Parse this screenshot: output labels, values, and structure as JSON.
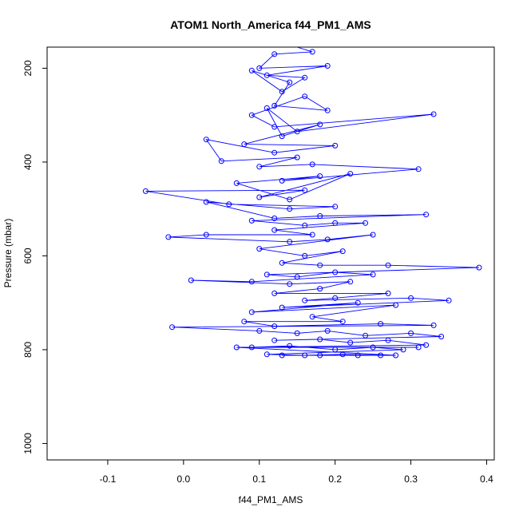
{
  "chart_data": {
    "type": "line",
    "title": "ATOM1 North_America f44_PM1_AMS",
    "xlabel": "f44_PM1_AMS",
    "ylabel": "Pressure (mbar)",
    "xlim": [
      -0.18,
      0.41
    ],
    "ylim": [
      1035,
      155
    ],
    "y_reversed": true,
    "xticks": [
      -0.1,
      0.0,
      0.1,
      0.2,
      0.3,
      0.4
    ],
    "yticks": [
      200,
      400,
      600,
      800,
      1000
    ],
    "series_color": "#0000ff",
    "marker": "open-circle",
    "grid": false,
    "series": [
      {
        "points": [
          [
            0.14,
            150
          ],
          [
            0.17,
            165
          ],
          [
            0.12,
            170
          ],
          [
            0.1,
            200
          ],
          [
            0.19,
            195
          ],
          [
            0.11,
            215
          ],
          [
            0.16,
            220
          ],
          [
            0.13,
            250
          ],
          [
            0.09,
            205
          ],
          [
            0.14,
            230
          ],
          [
            0.12,
            280
          ],
          [
            0.19,
            290
          ],
          [
            0.16,
            260
          ],
          [
            0.09,
            300
          ],
          [
            0.12,
            325
          ],
          [
            0.33,
            298
          ],
          [
            0.15,
            335
          ],
          [
            0.11,
            285
          ],
          [
            0.13,
            345
          ],
          [
            0.18,
            320
          ],
          [
            0.08,
            362
          ],
          [
            0.2,
            365
          ],
          [
            0.12,
            380
          ],
          [
            0.03,
            352
          ],
          [
            0.05,
            398
          ],
          [
            0.15,
            390
          ],
          [
            0.1,
            410
          ],
          [
            0.17,
            405
          ],
          [
            0.31,
            415
          ],
          [
            0.13,
            440
          ],
          [
            0.18,
            430
          ],
          [
            0.07,
            445
          ],
          [
            0.14,
            480
          ],
          [
            0.22,
            425
          ],
          [
            0.1,
            475
          ],
          [
            0.16,
            460
          ],
          [
            -0.05,
            462
          ],
          [
            0.06,
            490
          ],
          [
            0.2,
            495
          ],
          [
            0.14,
            500
          ],
          [
            0.03,
            485
          ],
          [
            0.12,
            520
          ],
          [
            0.18,
            515
          ],
          [
            0.32,
            512
          ],
          [
            0.09,
            525
          ],
          [
            0.16,
            535
          ],
          [
            0.2,
            530
          ],
          [
            0.24,
            530
          ],
          [
            0.12,
            545
          ],
          [
            0.17,
            555
          ],
          [
            0.03,
            555
          ],
          [
            -0.02,
            560
          ],
          [
            0.14,
            570
          ],
          [
            0.19,
            565
          ],
          [
            0.25,
            555
          ],
          [
            0.1,
            585
          ],
          [
            0.16,
            600
          ],
          [
            0.21,
            590
          ],
          [
            0.13,
            615
          ],
          [
            0.18,
            620
          ],
          [
            0.27,
            620
          ],
          [
            0.39,
            625
          ],
          [
            0.11,
            640
          ],
          [
            0.15,
            645
          ],
          [
            0.2,
            635
          ],
          [
            0.25,
            640
          ],
          [
            0.09,
            655
          ],
          [
            0.01,
            652
          ],
          [
            0.14,
            660
          ],
          [
            0.22,
            655
          ],
          [
            0.18,
            670
          ],
          [
            0.12,
            680
          ],
          [
            0.27,
            680
          ],
          [
            0.2,
            690
          ],
          [
            0.16,
            695
          ],
          [
            0.3,
            690
          ],
          [
            0.35,
            695
          ],
          [
            0.13,
            710
          ],
          [
            0.23,
            700
          ],
          [
            0.09,
            720
          ],
          [
            0.28,
            705
          ],
          [
            0.17,
            730
          ],
          [
            0.21,
            740
          ],
          [
            0.08,
            740
          ],
          [
            0.12,
            750
          ],
          [
            0.26,
            745
          ],
          [
            0.33,
            748
          ],
          [
            -0.015,
            752
          ],
          [
            0.1,
            760
          ],
          [
            0.15,
            765
          ],
          [
            0.19,
            760
          ],
          [
            0.24,
            770
          ],
          [
            0.3,
            765
          ],
          [
            0.34,
            772
          ],
          [
            0.12,
            780
          ],
          [
            0.18,
            778
          ],
          [
            0.22,
            785
          ],
          [
            0.27,
            780
          ],
          [
            0.32,
            790
          ],
          [
            0.09,
            795
          ],
          [
            0.14,
            792
          ],
          [
            0.2,
            800
          ],
          [
            0.25,
            795
          ],
          [
            0.29,
            800
          ],
          [
            0.11,
            810
          ],
          [
            0.16,
            812
          ],
          [
            0.21,
            810
          ],
          [
            0.26,
            812
          ],
          [
            0.13,
            812
          ],
          [
            0.18,
            812
          ],
          [
            0.23,
            812
          ],
          [
            0.28,
            812
          ],
          [
            0.07,
            795
          ],
          [
            0.31,
            795
          ]
        ]
      }
    ]
  }
}
